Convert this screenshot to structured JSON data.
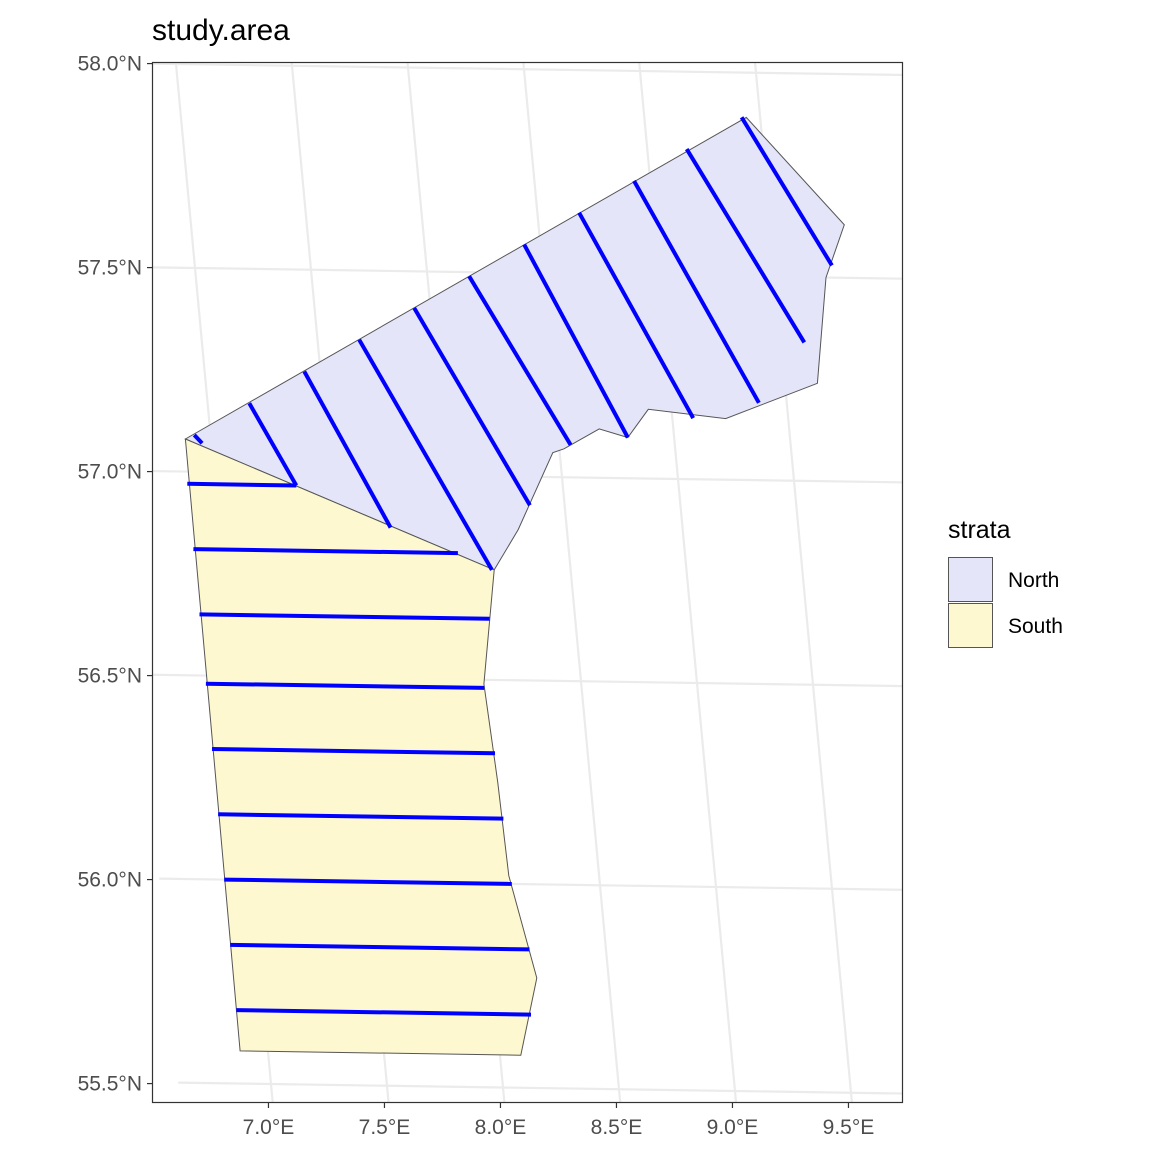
{
  "chart_data": {
    "type": "map",
    "title": "study.area",
    "xlabel": "",
    "ylabel": "",
    "xlim": [
      6.88,
      9.82
    ],
    "ylim": [
      55.58,
      57.89
    ],
    "x_ticks": [
      {
        "value": 7.0,
        "label": "7.0°E"
      },
      {
        "value": 7.5,
        "label": "7.5°E"
      },
      {
        "value": 8.0,
        "label": "8.0°E"
      },
      {
        "value": 8.5,
        "label": "8.5°E"
      },
      {
        "value": 9.0,
        "label": "9.0°E"
      },
      {
        "value": 9.5,
        "label": "9.5°E"
      }
    ],
    "y_ticks": [
      {
        "value": 55.5,
        "label": "55.5°N"
      },
      {
        "value": 56.0,
        "label": "56.0°N"
      },
      {
        "value": 56.5,
        "label": "56.5°N"
      },
      {
        "value": 57.0,
        "label": "57.0°N"
      },
      {
        "value": 57.5,
        "label": "57.5°N"
      },
      {
        "value": 58.0,
        "label": "58.0°N"
      }
    ],
    "grid": true,
    "legend": {
      "title": "strata",
      "position": "right",
      "entries": [
        {
          "label": "North",
          "color": "#e4e5f8"
        },
        {
          "label": "South",
          "color": "#fdf8cf"
        }
      ]
    },
    "strata": [
      {
        "name": "North",
        "color": "#e4e5f8",
        "polygon": [
          [
            6.89,
            57.08
          ],
          [
            9.44,
            57.89
          ],
          [
            9.82,
            57.63
          ],
          [
            9.72,
            57.5
          ],
          [
            9.64,
            57.24
          ],
          [
            9.23,
            57.15
          ],
          [
            8.9,
            57.17
          ],
          [
            8.8,
            57.1
          ],
          [
            8.68,
            57.12
          ],
          [
            8.52,
            57.07
          ],
          [
            8.47,
            57.06
          ],
          [
            8.29,
            56.87
          ],
          [
            8.17,
            56.77
          ]
        ]
      },
      {
        "name": "South",
        "color": "#fdf8cf",
        "polygon": [
          [
            6.89,
            57.08
          ],
          [
            8.17,
            56.77
          ],
          [
            8.08,
            56.49
          ],
          [
            8.1,
            56.25
          ],
          [
            8.11,
            56.02
          ],
          [
            8.19,
            55.77
          ],
          [
            8.09,
            55.58
          ],
          [
            6.88,
            55.58
          ]
        ]
      }
    ],
    "transect_color": "#0000ff",
    "transects": [
      {
        "stratum": "North",
        "points": [
          [
            6.93,
            57.09
          ],
          [
            6.96,
            57.07
          ]
        ]
      },
      {
        "stratum": "North",
        "points": [
          [
            7.18,
            57.17
          ],
          [
            7.35,
            56.97
          ]
        ]
      },
      {
        "stratum": "North",
        "points": [
          [
            7.43,
            57.25
          ],
          [
            7.74,
            56.87
          ]
        ]
      },
      {
        "stratum": "North",
        "points": [
          [
            7.68,
            57.33
          ],
          [
            8.16,
            56.77
          ]
        ]
      },
      {
        "stratum": "North",
        "points": [
          [
            7.93,
            57.41
          ],
          [
            8.35,
            56.93
          ]
        ]
      },
      {
        "stratum": "North",
        "points": [
          [
            8.18,
            57.49
          ],
          [
            8.55,
            57.08
          ]
        ]
      },
      {
        "stratum": "North",
        "points": [
          [
            8.43,
            57.57
          ],
          [
            8.8,
            57.1
          ]
        ]
      },
      {
        "stratum": "North",
        "points": [
          [
            8.68,
            57.65
          ],
          [
            9.09,
            57.15
          ]
        ]
      },
      {
        "stratum": "North",
        "points": [
          [
            8.93,
            57.73
          ],
          [
            9.38,
            57.19
          ]
        ]
      },
      {
        "stratum": "North",
        "points": [
          [
            9.17,
            57.81
          ],
          [
            9.6,
            57.34
          ]
        ]
      },
      {
        "stratum": "North",
        "points": [
          [
            9.42,
            57.89
          ],
          [
            9.75,
            57.53
          ]
        ]
      },
      {
        "stratum": "South",
        "points": [
          [
            6.88,
            56.97
          ],
          [
            7.35,
            56.97
          ]
        ]
      },
      {
        "stratum": "South",
        "points": [
          [
            6.88,
            56.81
          ],
          [
            8.02,
            56.81
          ]
        ]
      },
      {
        "stratum": "South",
        "points": [
          [
            6.88,
            56.65
          ],
          [
            8.13,
            56.65
          ]
        ]
      },
      {
        "stratum": "South",
        "points": [
          [
            6.88,
            56.48
          ],
          [
            8.08,
            56.48
          ]
        ]
      },
      {
        "stratum": "South",
        "points": [
          [
            6.88,
            56.32
          ],
          [
            8.1,
            56.32
          ]
        ]
      },
      {
        "stratum": "South",
        "points": [
          [
            6.88,
            56.16
          ],
          [
            8.11,
            56.16
          ]
        ]
      },
      {
        "stratum": "South",
        "points": [
          [
            6.88,
            56.0
          ],
          [
            8.12,
            56.0
          ]
        ]
      },
      {
        "stratum": "South",
        "points": [
          [
            6.88,
            55.84
          ],
          [
            8.17,
            55.84
          ]
        ]
      },
      {
        "stratum": "South",
        "points": [
          [
            6.88,
            55.68
          ],
          [
            8.15,
            55.68
          ]
        ]
      }
    ]
  }
}
